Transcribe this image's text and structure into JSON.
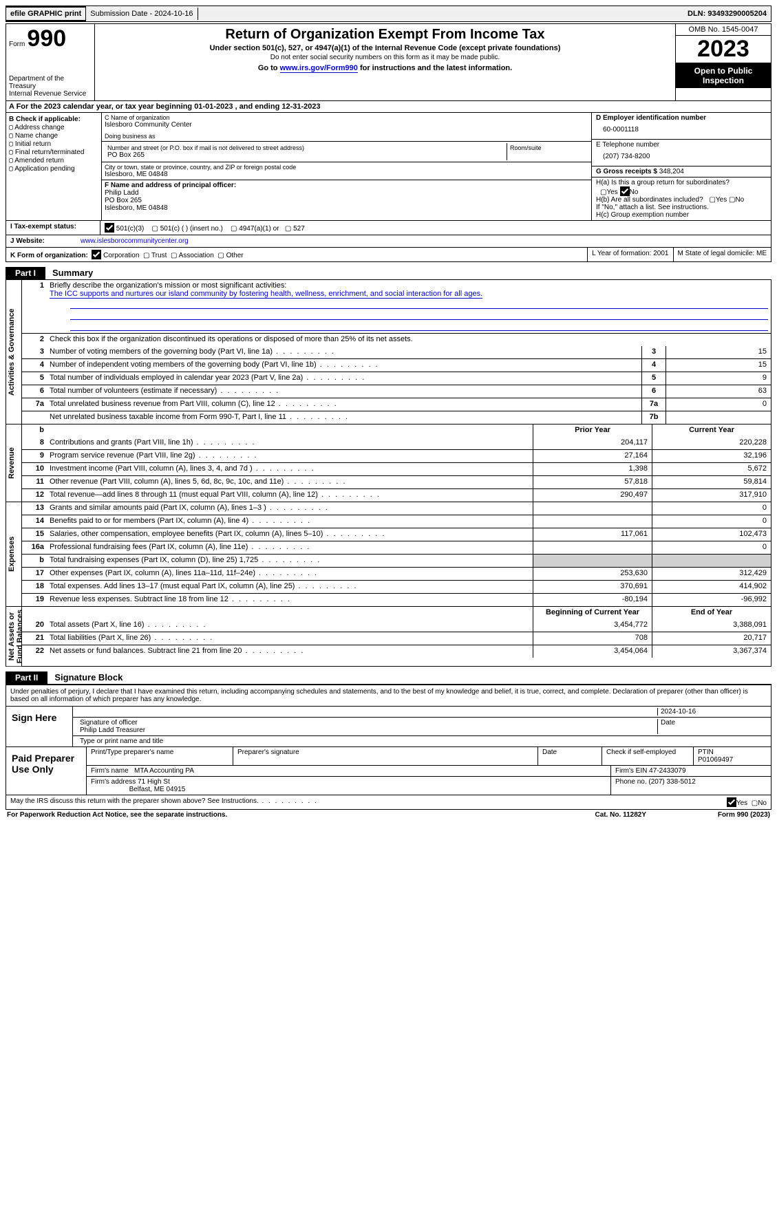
{
  "topbar": {
    "efile": "efile GRAPHIC print",
    "submission": "Submission Date - 2024-10-16",
    "dln": "DLN: 93493290005204"
  },
  "header": {
    "form_word": "Form",
    "form_num": "990",
    "title": "Return of Organization Exempt From Income Tax",
    "sub": "Under section 501(c), 527, or 4947(a)(1) of the Internal Revenue Code (except private foundations)",
    "sub2": "Do not enter social security numbers on this form as it may be made public.",
    "sub3_pre": "Go to ",
    "sub3_link": "www.irs.gov/Form990",
    "sub3_post": " for instructions and the latest information.",
    "dept": "Department of the Treasury\nInternal Revenue Service",
    "omb": "OMB No. 1545-0047",
    "year": "2023",
    "open": "Open to Public Inspection"
  },
  "rowA": "A   For the 2023 calendar year, or tax year beginning 01-01-2023    , and ending 12-31-2023",
  "colB": {
    "label": "B Check if applicable:",
    "opts": [
      "Address change",
      "Name change",
      "Initial return",
      "Final return/terminated",
      "Amended return",
      "Application pending"
    ]
  },
  "colC": {
    "name_lbl": "C Name of organization",
    "name": "Islesboro Community Center",
    "dba_lbl": "Doing business as",
    "street_lbl": "Number and street (or P.O. box if mail is not delivered to street address)",
    "room_lbl": "Room/suite",
    "street": "PO Box 265",
    "city_lbl": "City or town, state or province, country, and ZIP or foreign postal code",
    "city": "Islesboro, ME  04848",
    "f_lbl": "F  Name and address of principal officer:",
    "f_name": "Philip Ladd",
    "f_addr1": "PO Box 265",
    "f_addr2": "Islesboro, ME  04848"
  },
  "colD": {
    "ein_lbl": "D Employer identification number",
    "ein": "60-0001118",
    "tel_lbl": "E Telephone number",
    "tel": "(207) 734-8200",
    "gross_lbl": "G Gross receipts $ ",
    "gross": "348,204"
  },
  "h": {
    "ha": "H(a)  Is this a group return for subordinates?",
    "hb": "H(b)  Are all subordinates included?",
    "hb_note": "If \"No,\" attach a list. See instructions.",
    "hc": "H(c)  Group exemption number  "
  },
  "i": {
    "label": "I    Tax-exempt status:",
    "opts": [
      "501(c)(3)",
      "501(c) (  ) (insert no.)",
      "4947(a)(1) or",
      "527"
    ]
  },
  "j": {
    "label": "J    Website: ",
    "val": "www.islesborocommunitycenter.org"
  },
  "k": {
    "label": "K Form of organization:",
    "opts": [
      "Corporation",
      "Trust",
      "Association",
      "Other"
    ],
    "l": "L Year of formation: 2001",
    "m": "M State of legal domicile: ME"
  },
  "part1": {
    "part": "Part I",
    "name": "Summary",
    "q1": "Briefly describe the organization's mission or most significant activities:",
    "mission": "The ICC supports and nurtures our island community by fostering health, wellness, enrichment, and social interaction for all ages.",
    "q2": "Check this box      if the organization discontinued its operations or disposed of more than 25% of its net assets.",
    "lines_gov": [
      {
        "n": "3",
        "t": "Number of voting members of the governing body (Part VI, line 1a)",
        "b": "3",
        "v": "15"
      },
      {
        "n": "4",
        "t": "Number of independent voting members of the governing body (Part VI, line 1b)",
        "b": "4",
        "v": "15"
      },
      {
        "n": "5",
        "t": "Total number of individuals employed in calendar year 2023 (Part V, line 2a)",
        "b": "5",
        "v": "9"
      },
      {
        "n": "6",
        "t": "Total number of volunteers (estimate if necessary)",
        "b": "6",
        "v": "63"
      },
      {
        "n": "7a",
        "t": "Total unrelated business revenue from Part VIII, column (C), line 12",
        "b": "7a",
        "v": "0"
      },
      {
        "n": "",
        "t": "Net unrelated business taxable income from Form 990-T, Part I, line 11",
        "b": "7b",
        "v": ""
      }
    ],
    "rev_hdr_b": "b",
    "rev_hdr_py": "Prior Year",
    "rev_hdr_cy": "Current Year",
    "lines_rev": [
      {
        "n": "8",
        "t": "Contributions and grants (Part VIII, line 1h)",
        "py": "204,117",
        "cy": "220,228"
      },
      {
        "n": "9",
        "t": "Program service revenue (Part VIII, line 2g)",
        "py": "27,164",
        "cy": "32,196"
      },
      {
        "n": "10",
        "t": "Investment income (Part VIII, column (A), lines 3, 4, and 7d )",
        "py": "1,398",
        "cy": "5,672"
      },
      {
        "n": "11",
        "t": "Other revenue (Part VIII, column (A), lines 5, 6d, 8c, 9c, 10c, and 11e)",
        "py": "57,818",
        "cy": "59,814"
      },
      {
        "n": "12",
        "t": "Total revenue—add lines 8 through 11 (must equal Part VIII, column (A), line 12)",
        "py": "290,497",
        "cy": "317,910"
      }
    ],
    "lines_exp": [
      {
        "n": "13",
        "t": "Grants and similar amounts paid (Part IX, column (A), lines 1–3 )",
        "py": "",
        "cy": "0"
      },
      {
        "n": "14",
        "t": "Benefits paid to or for members (Part IX, column (A), line 4)",
        "py": "",
        "cy": "0"
      },
      {
        "n": "15",
        "t": "Salaries, other compensation, employee benefits (Part IX, column (A), lines 5–10)",
        "py": "117,061",
        "cy": "102,473"
      },
      {
        "n": "16a",
        "t": "Professional fundraising fees (Part IX, column (A), line 11e)",
        "py": "",
        "cy": "0"
      },
      {
        "n": "b",
        "t": "Total fundraising expenses (Part IX, column (D), line 25) 1,725",
        "py": "GREY",
        "cy": "GREY"
      },
      {
        "n": "17",
        "t": "Other expenses (Part IX, column (A), lines 11a–11d, 11f–24e)",
        "py": "253,630",
        "cy": "312,429"
      },
      {
        "n": "18",
        "t": "Total expenses. Add lines 13–17 (must equal Part IX, column (A), line 25)",
        "py": "370,691",
        "cy": "414,902"
      },
      {
        "n": "19",
        "t": "Revenue less expenses. Subtract line 18 from line 12",
        "py": "-80,194",
        "cy": "-96,992"
      }
    ],
    "na_hdr_py": "Beginning of Current Year",
    "na_hdr_cy": "End of Year",
    "lines_na": [
      {
        "n": "20",
        "t": "Total assets (Part X, line 16)",
        "py": "3,454,772",
        "cy": "3,388,091"
      },
      {
        "n": "21",
        "t": "Total liabilities (Part X, line 26)",
        "py": "708",
        "cy": "20,717"
      },
      {
        "n": "22",
        "t": "Net assets or fund balances. Subtract line 21 from line 20",
        "py": "3,454,064",
        "cy": "3,367,374"
      }
    ],
    "tabs": {
      "gov": "Activities & Governance",
      "rev": "Revenue",
      "exp": "Expenses",
      "na": "Net Assets or\nFund Balances"
    }
  },
  "part2": {
    "part": "Part II",
    "name": "Signature Block",
    "penalty": "Under penalties of perjury, I declare that I have examined this return, including accompanying schedules and statements, and to the best of my knowledge and belief, it is true, correct, and complete. Declaration of preparer (other than officer) is based on all information of which preparer has any knowledge.",
    "sign_here": "Sign Here",
    "sig_date": "2024-10-16",
    "sig_lbl": "Signature of officer",
    "date_lbl": "Date",
    "sig_name": "Philip Ladd  Treasurer",
    "type_lbl": "Type or print name and title",
    "paid": "Paid Preparer Use Only",
    "prep_name_lbl": "Print/Type preparer's name",
    "prep_sig_lbl": "Preparer's signature",
    "prep_date_lbl": "Date",
    "self_lbl": "Check       if self-employed",
    "ptin_lbl": "PTIN",
    "ptin": "P01069497",
    "firm_name_lbl": "Firm's name    ",
    "firm_name": "MTA Accounting PA",
    "firm_ein_lbl": "Firm's EIN  ",
    "firm_ein": "47-2433079",
    "firm_addr_lbl": "Firm's address ",
    "firm_addr": "71 High St",
    "firm_addr2": "Belfast, ME  04915",
    "phone_lbl": "Phone no. ",
    "phone": "(207) 338-5012",
    "discuss": "May the IRS discuss this return with the preparer shown above? See Instructions.",
    "yes": "Yes",
    "no": "No"
  },
  "footer": {
    "l": "For Paperwork Reduction Act Notice, see the separate instructions.",
    "c": "Cat. No. 11282Y",
    "r": "Form 990 (2023)"
  },
  "colors": {
    "link": "#0000cc",
    "black": "#000000",
    "grey": "#d0d0d0"
  }
}
